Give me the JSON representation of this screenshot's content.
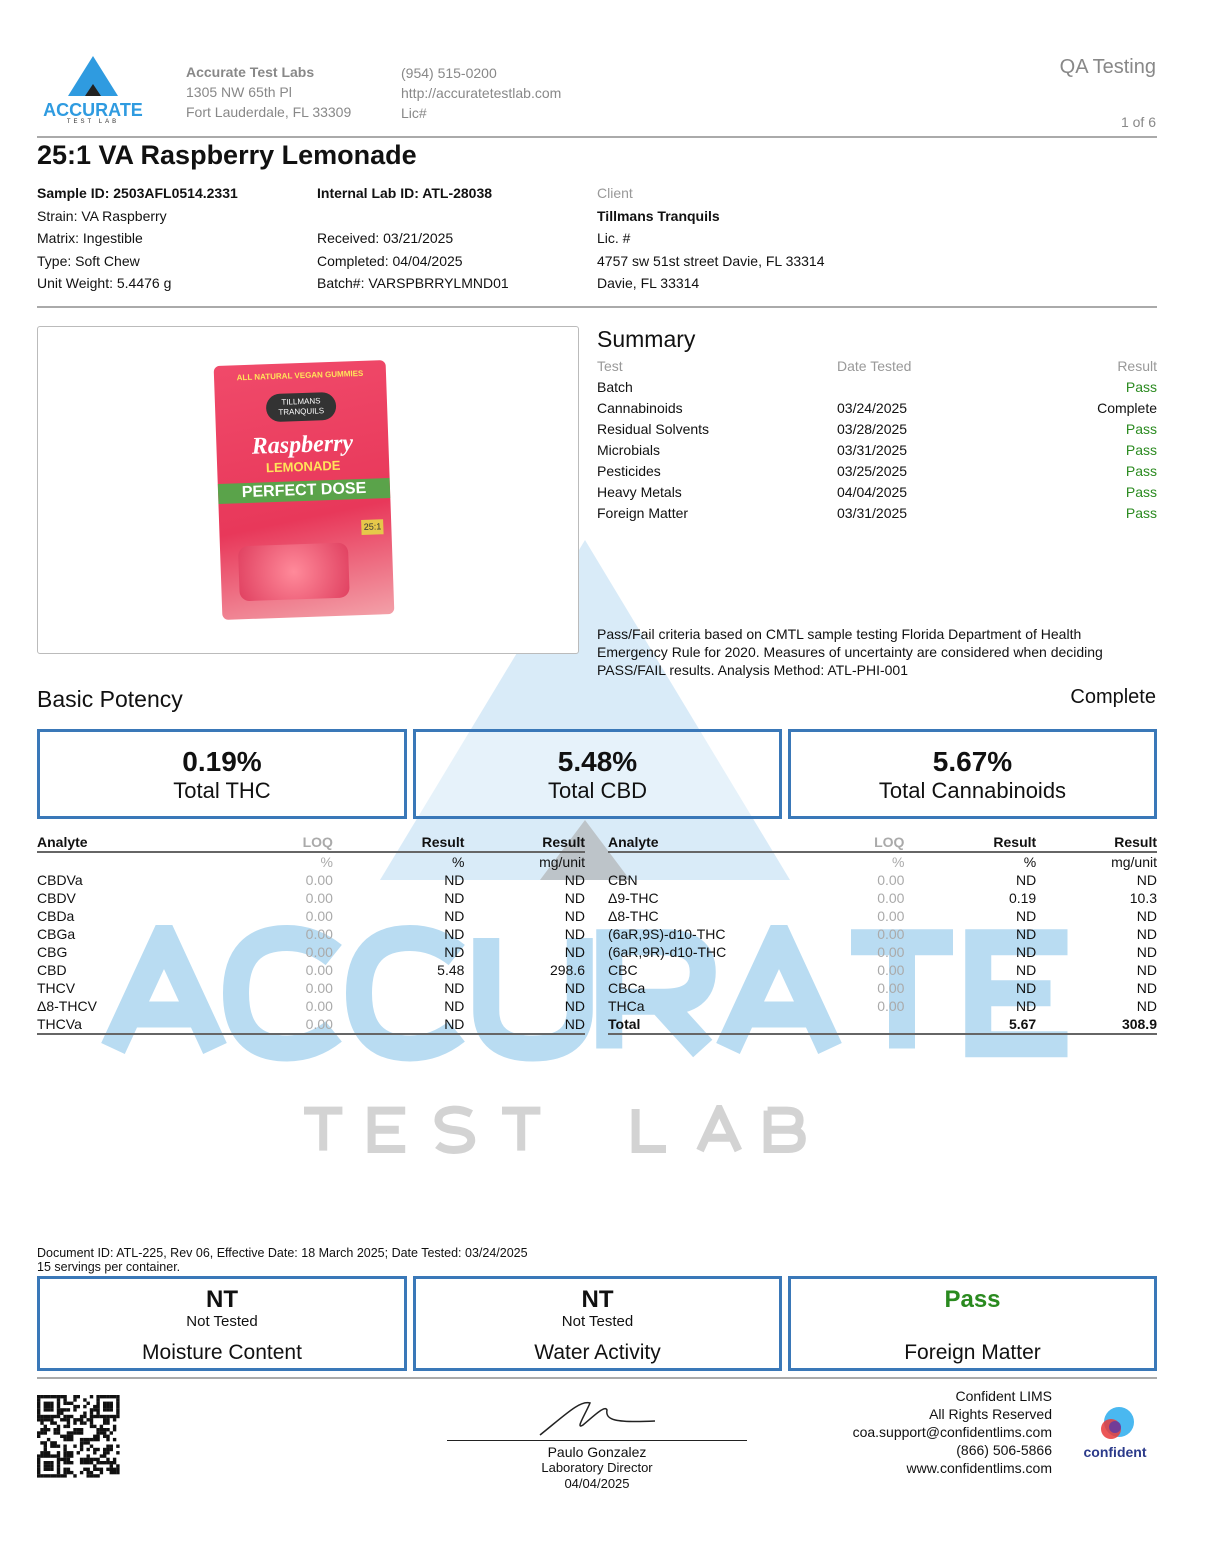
{
  "header": {
    "logo_text": "ACCURATE",
    "logo_sub": "TEST LAB",
    "lab_name": "Accurate Test Labs",
    "address1": "1305 NW 65th Pl",
    "address2": "Fort Lauderdale, FL 33309",
    "phone": "(954) 515-0200",
    "website": "http://accuratetestlab.com",
    "lic": "Lic#",
    "report_type": "QA Testing",
    "page": "1 of 6"
  },
  "product": {
    "title": "25:1 VA Raspberry Lemonade",
    "sample_id": "Sample ID: 2503AFL0514.2331",
    "strain": "Strain: VA Raspberry",
    "matrix": "Matrix: Ingestible",
    "type": "Type: Soft Chew",
    "unit_weight": "Unit Weight: 5.4476 g",
    "internal_id": "Internal Lab ID: ATL-28038",
    "received": "Received: 03/21/2025",
    "completed": "Completed: 04/04/2025",
    "batch": "Batch#: VARSPBRRYLMND01"
  },
  "client": {
    "label": "Client",
    "name": "Tillmans Tranquils",
    "lic": "Lic. #",
    "address": "4757 sw 51st street Davie, FL 33314",
    "city": "Davie, FL 33314"
  },
  "image": {
    "top_text": "ALL NATURAL VEGAN GUMMIES",
    "brand": "TILLMANS TRANQUILS",
    "line1": "Raspberry",
    "line2": "LEMONADE",
    "line3": "PERFECT DOSE",
    "ratio": "25:1"
  },
  "summary": {
    "title": "Summary",
    "col_test": "Test",
    "col_date": "Date Tested",
    "col_result": "Result",
    "rows": [
      {
        "test": "Batch",
        "date": "",
        "result": "Pass"
      },
      {
        "test": "Cannabinoids",
        "date": "03/24/2025",
        "result": "Complete"
      },
      {
        "test": "Residual Solvents",
        "date": "03/28/2025",
        "result": "Pass"
      },
      {
        "test": "Microbials",
        "date": "03/31/2025",
        "result": "Pass"
      },
      {
        "test": "Pesticides",
        "date": "03/25/2025",
        "result": "Pass"
      },
      {
        "test": "Heavy Metals",
        "date": "04/04/2025",
        "result": "Pass"
      },
      {
        "test": "Foreign Matter",
        "date": "03/31/2025",
        "result": "Pass"
      }
    ],
    "note": "Pass/Fail criteria based on CMTL sample testing Florida Department of Health Emergency Rule for 2020. Measures of uncertainty are considered when deciding PASS/FAIL results. Analysis Method: ATL-PHI-001"
  },
  "potency": {
    "title": "Basic Potency",
    "status": "Complete",
    "cards": [
      {
        "value": "0.19%",
        "label": "Total THC"
      },
      {
        "value": "5.48%",
        "label": "Total CBD"
      },
      {
        "value": "5.67%",
        "label": "Total Cannabinoids"
      }
    ]
  },
  "table": {
    "headers": [
      "Analyte",
      "LOQ",
      "Result",
      "Result"
    ],
    "units": [
      "",
      "%",
      "%",
      "mg/unit"
    ],
    "left": [
      [
        "CBDVa",
        "0.00",
        "ND",
        "ND"
      ],
      [
        "CBDV",
        "0.00",
        "ND",
        "ND"
      ],
      [
        "CBDa",
        "0.00",
        "ND",
        "ND"
      ],
      [
        "CBGa",
        "0.00",
        "ND",
        "ND"
      ],
      [
        "CBG",
        "0.00",
        "ND",
        "ND"
      ],
      [
        "CBD",
        "0.00",
        "5.48",
        "298.6"
      ],
      [
        "THCV",
        "0.00",
        "ND",
        "ND"
      ],
      [
        "Δ8-THCV",
        "0.00",
        "ND",
        "ND"
      ],
      [
        "THCVa",
        "0.00",
        "ND",
        "ND"
      ]
    ],
    "right": [
      [
        "CBN",
        "0.00",
        "ND",
        "ND"
      ],
      [
        "Δ9-THC",
        "0.00",
        "0.19",
        "10.3"
      ],
      [
        "Δ8-THC",
        "0.00",
        "ND",
        "ND"
      ],
      [
        "(6aR,9S)-d10-THC",
        "0.00",
        "ND",
        "ND"
      ],
      [
        "(6aR,9R)-d10-THC",
        "0.00",
        "ND",
        "ND"
      ],
      [
        "CBC",
        "0.00",
        "ND",
        "ND"
      ],
      [
        "CBCa",
        "0.00",
        "ND",
        "ND"
      ],
      [
        "THCa",
        "0.00",
        "ND",
        "ND"
      ],
      [
        "Total",
        "",
        "5.67",
        "308.9"
      ]
    ]
  },
  "watermark": {
    "line1": "ACCURATE",
    "line2": "TEST LAB"
  },
  "doc_note": "Document ID: ATL-225, Rev 06, Effective Date: 18 March 2025; Date Tested: 03/24/2025",
  "servings": "15 servings per container.",
  "bottom_cards": [
    {
      "value": "NT",
      "sub": "Not Tested",
      "label": "Moisture Content"
    },
    {
      "value": "NT",
      "sub": "Not Tested",
      "label": "Water Activity"
    },
    {
      "value": "Pass",
      "sub": "",
      "label": "Foreign Matter"
    }
  ],
  "signature": {
    "name": "Paulo Gonzalez",
    "title": "Laboratory Director",
    "date": "04/04/2025"
  },
  "footer": {
    "lims": "Confident LIMS",
    "rights": "All Rights Reserved",
    "email": "coa.support@confidentlims.com",
    "phone": "(866) 506-5866",
    "web": "www.confidentlims.com",
    "logo_text": "confident"
  },
  "colors": {
    "accent": "#3a78b8",
    "pass": "#2a8a1f",
    "watermark": "#a9d3ee"
  }
}
